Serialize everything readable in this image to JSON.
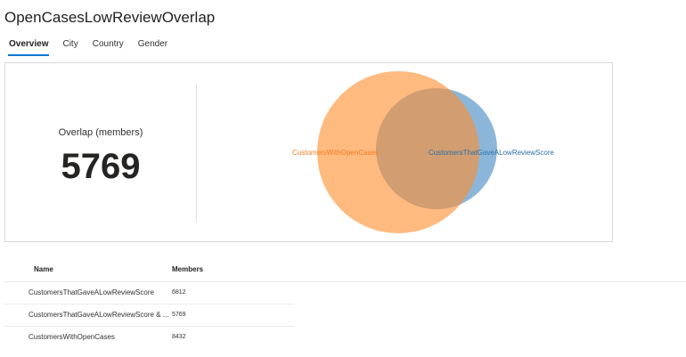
{
  "title": "OpenCasesLowReviewOverlap",
  "tabs": [
    {
      "label": "Overview",
      "active": true
    },
    {
      "label": "City",
      "active": false
    },
    {
      "label": "Country",
      "active": false
    },
    {
      "label": "Gender",
      "active": false
    }
  ],
  "overlap": {
    "label": "Overlap (members)",
    "value": "5769"
  },
  "venn": {
    "left": {
      "label": "CustomersWithOpenCases",
      "color": "#ff8c2b",
      "label_color": "#f07f22"
    },
    "right": {
      "label": "CustomersThatGaveALowReviewScore",
      "color": "#4f8fc4",
      "label_color": "#2e6fa6"
    }
  },
  "table": {
    "headers": {
      "name": "Name",
      "members": "Members"
    },
    "rows": [
      {
        "name": "CustomersThatGaveALowReviewScore",
        "members": "6812"
      },
      {
        "name": "CustomersThatGaveALowReviewScore & ...",
        "members": "5769"
      },
      {
        "name": "CustomersWithOpenCases",
        "members": "8432"
      }
    ]
  }
}
